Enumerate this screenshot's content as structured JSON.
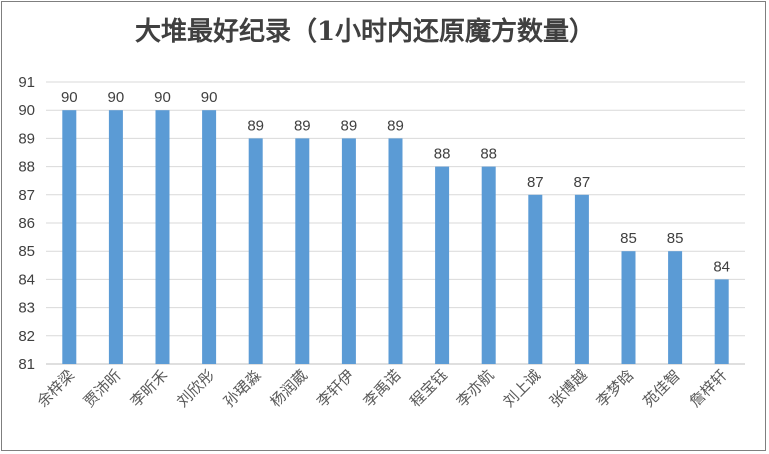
{
  "chart_data": {
    "type": "bar",
    "title": "大堆最好纪录（1小时内还原魔方数量）",
    "xlabel": "",
    "ylabel": "",
    "categories": [
      "余梓梁",
      "贾沛昕",
      "李昕禾",
      "刘欣彤",
      "孙珺淼",
      "杨润葳",
      "李轩伊",
      "李禹诺",
      "程宝钰",
      "李亦航",
      "刘上诚",
      "张博越",
      "李梦晗",
      "苑佳智",
      "詹梓轩"
    ],
    "values": [
      90,
      90,
      90,
      90,
      89,
      89,
      89,
      89,
      88,
      88,
      87,
      87,
      85,
      85,
      84
    ],
    "ylim": [
      81,
      91
    ],
    "yticks": [
      81,
      82,
      83,
      84,
      85,
      86,
      87,
      88,
      89,
      90,
      91
    ],
    "grid": true,
    "legend": "none",
    "bar_color": "#5b9bd5"
  }
}
